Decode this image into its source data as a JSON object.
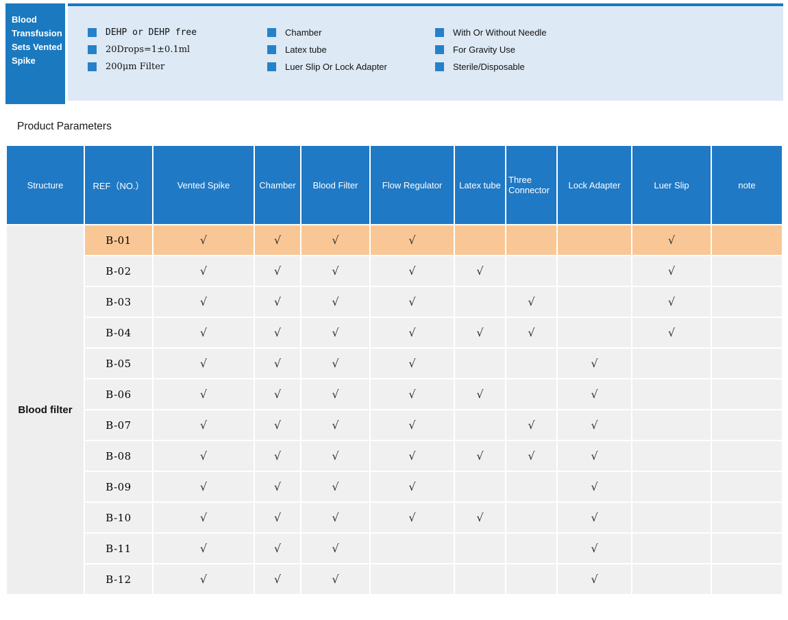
{
  "banner": {
    "title": "Blood Transfusion Sets Vented Spike",
    "features": [
      [
        "DEHP or DEHP free",
        "20Drops=1±0.1ml",
        "200μm Filter"
      ],
      [
        "Chamber",
        "Latex tube",
        "Luer Slip Or Lock Adapter"
      ],
      [
        "With Or Without Needle",
        "For Gravity Use",
        "Sterile/Disposable"
      ]
    ]
  },
  "section_title": "Product Parameters",
  "table": {
    "columns": [
      "Structure",
      "REF（NO.）",
      "Vented Spike",
      "Chamber",
      "Blood Filter",
      "Flow Regulator",
      "Latex tube",
      "Three Connector",
      "Lock Adapter",
      "Luer Slip",
      "note"
    ],
    "structure_label": "Blood filter",
    "check_symbol": "√",
    "rows": [
      {
        "ref": "B-01",
        "highlight": true,
        "checks": [
          1,
          1,
          1,
          1,
          0,
          0,
          0,
          1,
          0
        ]
      },
      {
        "ref": "B-02",
        "highlight": false,
        "checks": [
          1,
          1,
          1,
          1,
          1,
          0,
          0,
          1,
          0
        ]
      },
      {
        "ref": "B-03",
        "highlight": false,
        "checks": [
          1,
          1,
          1,
          1,
          0,
          1,
          0,
          1,
          0
        ]
      },
      {
        "ref": "B-04",
        "highlight": false,
        "checks": [
          1,
          1,
          1,
          1,
          1,
          1,
          0,
          1,
          0
        ]
      },
      {
        "ref": "B-05",
        "highlight": false,
        "checks": [
          1,
          1,
          1,
          1,
          0,
          0,
          1,
          0,
          0
        ]
      },
      {
        "ref": "B-06",
        "highlight": false,
        "checks": [
          1,
          1,
          1,
          1,
          1,
          0,
          1,
          0,
          0
        ]
      },
      {
        "ref": "B-07",
        "highlight": false,
        "checks": [
          1,
          1,
          1,
          1,
          0,
          1,
          1,
          0,
          0
        ]
      },
      {
        "ref": "B-08",
        "highlight": false,
        "checks": [
          1,
          1,
          1,
          1,
          1,
          1,
          1,
          0,
          0
        ]
      },
      {
        "ref": "B-09",
        "highlight": false,
        "checks": [
          1,
          1,
          1,
          1,
          0,
          0,
          1,
          0,
          0
        ]
      },
      {
        "ref": "B-10",
        "highlight": false,
        "checks": [
          1,
          1,
          1,
          1,
          1,
          0,
          1,
          0,
          0
        ]
      },
      {
        "ref": "B-11",
        "highlight": false,
        "checks": [
          1,
          1,
          1,
          0,
          0,
          0,
          1,
          0,
          0
        ]
      },
      {
        "ref": "B-12",
        "highlight": false,
        "checks": [
          1,
          1,
          1,
          0,
          0,
          0,
          1,
          0,
          0
        ]
      }
    ]
  },
  "colors": {
    "banner_box_blue": "#1b79c0",
    "banner_strip_blue": "#dde9f5",
    "banner_top_line": "#1878c2",
    "bullet_blue": "#2581c9",
    "header_blue": "#2079c4",
    "row_gray": "#f0f0f0",
    "structure_gray": "#eeeeee",
    "highlight_orange": "#f8c795",
    "check_color": "#2f2f2f"
  }
}
